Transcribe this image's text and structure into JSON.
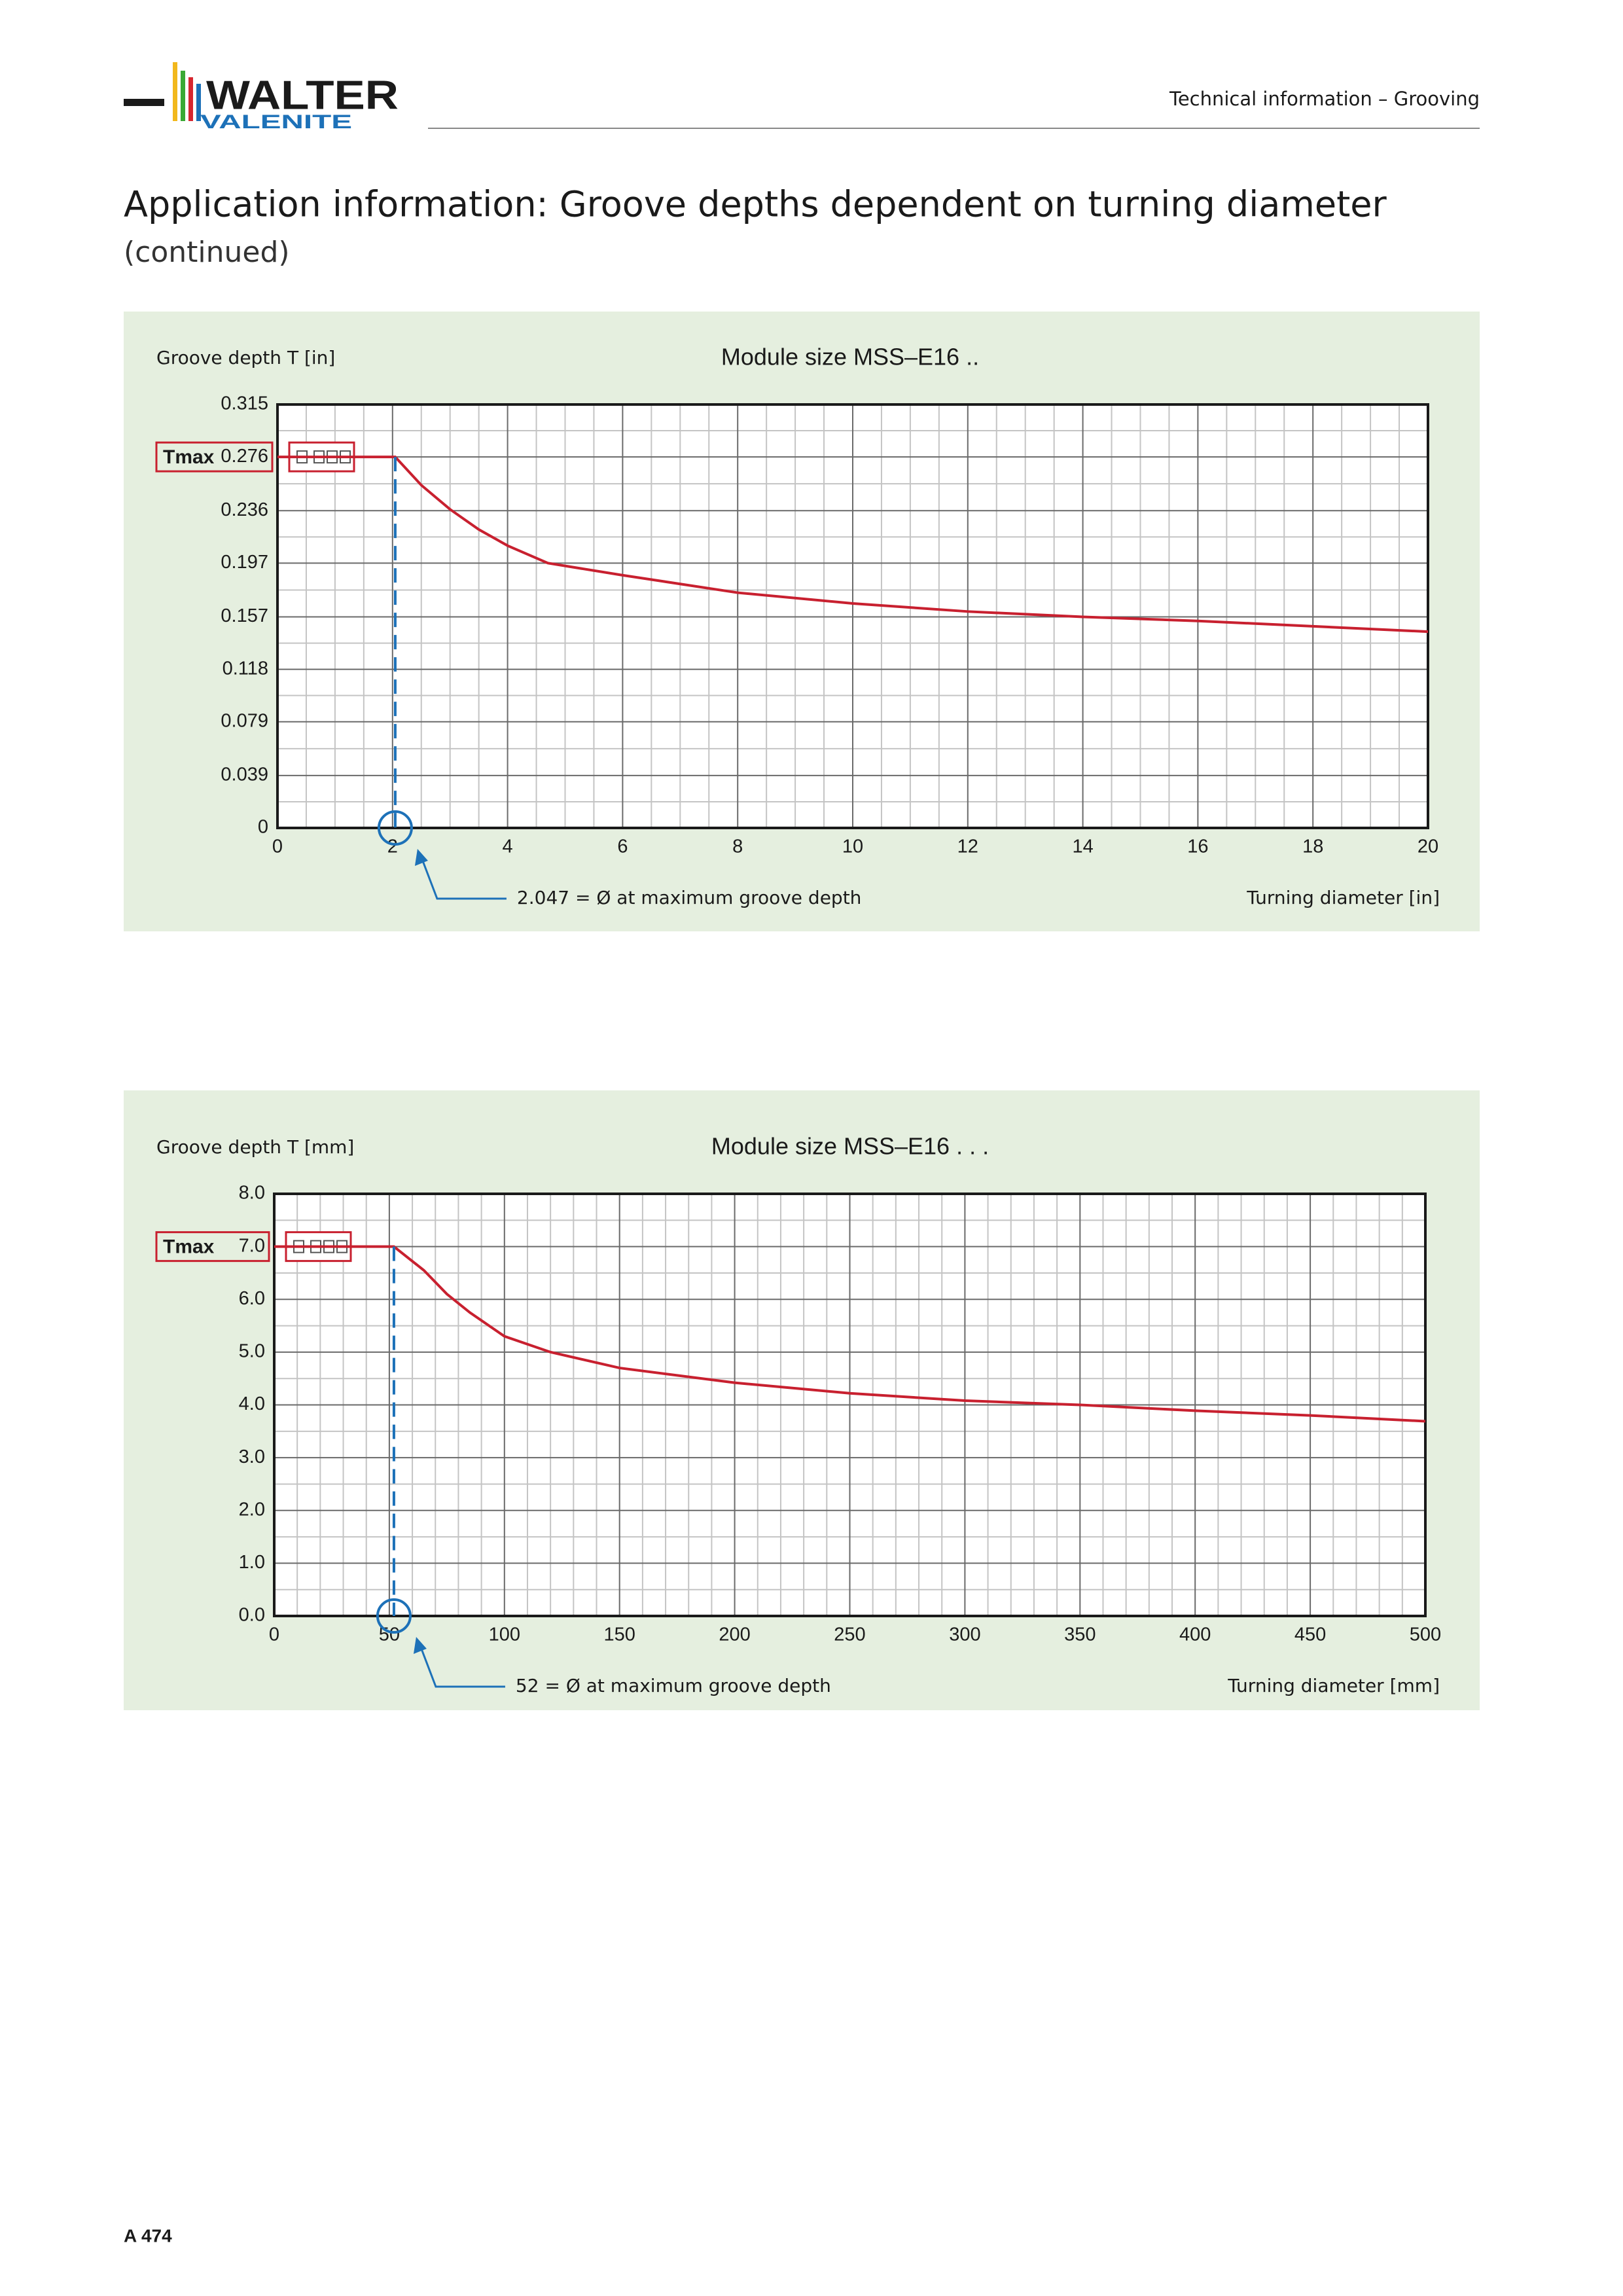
{
  "header": {
    "logo": {
      "brand": "WALTER",
      "sub": "VALENITE"
    },
    "section": "Technical information – Grooving"
  },
  "title": "Application information: Groove depths dependent on turning diameter",
  "subtitle": "(continued)",
  "chart_data": [
    {
      "type": "line",
      "title": "Module size MSS–E16 ..",
      "y_label": "Groove depth T [in]",
      "x_label": "Turning diameter [in]",
      "annotation": "2.047 = Ø at maximum groove depth",
      "tmax_label": "Tmax",
      "color": "#c8202f",
      "grid": true,
      "xlim": [
        0,
        20
      ],
      "xticks": [
        0,
        2,
        4,
        6,
        8,
        10,
        12,
        14,
        16,
        18,
        20
      ],
      "ylim": [
        0,
        0.315
      ],
      "yticks": [
        0,
        0.039,
        0.079,
        0.118,
        0.157,
        0.197,
        0.236,
        0.276,
        0.315
      ],
      "x": [
        0,
        2.047,
        2.5,
        3,
        3.5,
        4,
        4.7,
        6,
        8,
        10,
        12,
        14,
        16,
        18,
        20
      ],
      "values": [
        0.276,
        0.276,
        0.255,
        0.237,
        0.222,
        0.21,
        0.197,
        0.188,
        0.175,
        0.167,
        0.161,
        0.157,
        0.154,
        0.15,
        0.146
      ]
    },
    {
      "type": "line",
      "title": "Module size MSS–E16 . . .",
      "y_label": "Groove depth T [mm]",
      "x_label": "Turning diameter [mm]",
      "annotation": "52 = Ø at maximum groove depth",
      "tmax_label": "Tmax",
      "color": "#c8202f",
      "grid": true,
      "xlim": [
        0,
        500
      ],
      "xticks": [
        0,
        50,
        100,
        150,
        200,
        250,
        300,
        350,
        400,
        450,
        500
      ],
      "ylim": [
        0,
        8
      ],
      "yticks": [
        {
          "value": 0,
          "label": "0.0"
        },
        {
          "value": 1,
          "label": "1.0"
        },
        {
          "value": 2,
          "label": "2.0"
        },
        {
          "value": 3,
          "label": "3.0"
        },
        {
          "value": 4,
          "label": "4.0"
        },
        {
          "value": 5,
          "label": "5.0"
        },
        {
          "value": 6,
          "label": "6.0"
        },
        {
          "value": 7,
          "label": "7.0"
        },
        {
          "value": 8,
          "label": "8.0"
        }
      ],
      "x": [
        0,
        52,
        65,
        75,
        85,
        100,
        120,
        150,
        200,
        250,
        300,
        350,
        400,
        450,
        500
      ],
      "values": [
        7.0,
        7.0,
        6.55,
        6.1,
        5.75,
        5.3,
        5.0,
        4.7,
        4.42,
        4.22,
        4.08,
        4.0,
        3.89,
        3.8,
        3.69
      ]
    }
  ],
  "footer": {
    "page": "A 474"
  }
}
